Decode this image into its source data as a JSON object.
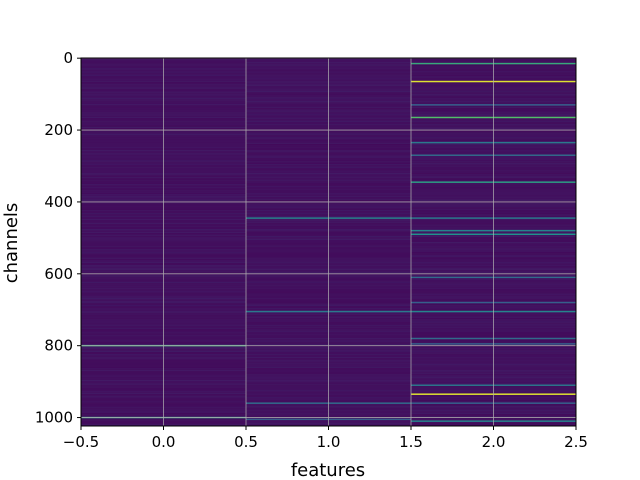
{
  "chart_data": {
    "type": "heatmap",
    "title": "",
    "xlabel": "features",
    "ylabel": "channels",
    "xlim": [
      -0.5,
      2.5
    ],
    "ylim": [
      1023.5,
      -0.5
    ],
    "x_ticks": [
      -0.5,
      0.0,
      0.5,
      1.0,
      1.5,
      2.0,
      2.5
    ],
    "x_tick_labels": [
      "−0.5",
      "0.0",
      "0.5",
      "1.0",
      "1.5",
      "2.0",
      "2.5"
    ],
    "y_ticks": [
      0,
      200,
      400,
      600,
      800,
      1000
    ],
    "y_tick_labels": [
      "0",
      "200",
      "400",
      "600",
      "800",
      "1000"
    ],
    "grid": true,
    "colormap": "viridis",
    "n_rows": 1024,
    "n_cols": 3,
    "background_value": 0.04,
    "highlights": [
      {
        "col": 0,
        "channel": 800,
        "value": 0.6
      },
      {
        "col": 0,
        "channel": 1000,
        "value": 0.55
      },
      {
        "col": 1,
        "channel": 445,
        "value": 0.45
      },
      {
        "col": 1,
        "channel": 705,
        "value": 0.4
      },
      {
        "col": 1,
        "channel": 960,
        "value": 0.35
      },
      {
        "col": 1,
        "channel": 1005,
        "value": 0.3
      },
      {
        "col": 2,
        "channel": 15,
        "value": 0.6
      },
      {
        "col": 2,
        "channel": 65,
        "value": 0.95
      },
      {
        "col": 2,
        "channel": 130,
        "value": 0.3
      },
      {
        "col": 2,
        "channel": 165,
        "value": 0.7
      },
      {
        "col": 2,
        "channel": 235,
        "value": 0.4
      },
      {
        "col": 2,
        "channel": 270,
        "value": 0.35
      },
      {
        "col": 2,
        "channel": 345,
        "value": 0.55
      },
      {
        "col": 2,
        "channel": 445,
        "value": 0.4
      },
      {
        "col": 2,
        "channel": 480,
        "value": 0.45
      },
      {
        "col": 2,
        "channel": 490,
        "value": 0.5
      },
      {
        "col": 2,
        "channel": 610,
        "value": 0.35
      },
      {
        "col": 2,
        "channel": 680,
        "value": 0.3
      },
      {
        "col": 2,
        "channel": 705,
        "value": 0.45
      },
      {
        "col": 2,
        "channel": 780,
        "value": 0.35
      },
      {
        "col": 2,
        "channel": 795,
        "value": 0.3
      },
      {
        "col": 2,
        "channel": 910,
        "value": 0.4
      },
      {
        "col": 2,
        "channel": 935,
        "value": 0.95
      },
      {
        "col": 2,
        "channel": 960,
        "value": 0.3
      },
      {
        "col": 2,
        "channel": 1010,
        "value": 0.45
      }
    ]
  }
}
